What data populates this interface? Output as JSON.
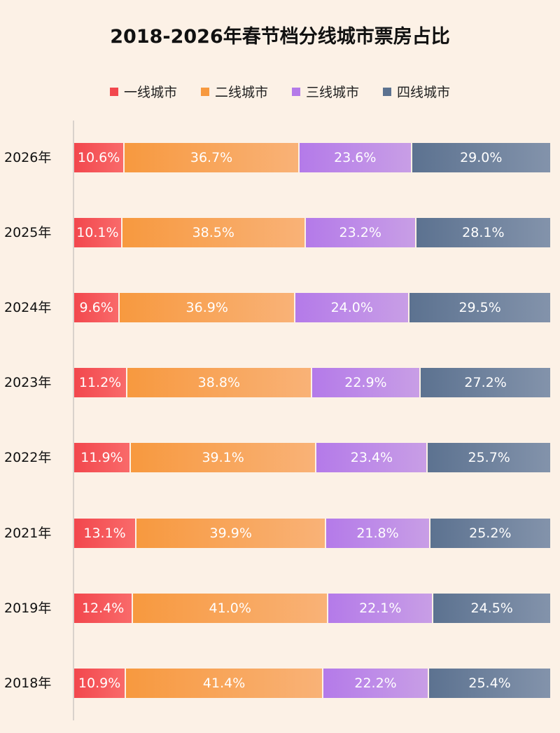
{
  "chart_data": {
    "type": "bar",
    "orientation": "horizontal",
    "stacked": true,
    "title": "2018-2026年春节档分线城市票房占比",
    "categories": [
      "2026年",
      "2025年",
      "2024年",
      "2023年",
      "2022年",
      "2021年",
      "2019年",
      "2018年"
    ],
    "series": [
      {
        "name": "一线城市",
        "color": "#f2474d",
        "color_end": "#f96a6a",
        "values": [
          10.6,
          10.1,
          9.6,
          11.2,
          11.9,
          13.1,
          12.4,
          10.9
        ]
      },
      {
        "name": "二线城市",
        "color": "#f7993f",
        "color_end": "#f9b277",
        "values": [
          36.7,
          38.5,
          36.9,
          38.8,
          39.1,
          39.9,
          41.0,
          41.4
        ]
      },
      {
        "name": "三线城市",
        "color": "#b47ae9",
        "color_end": "#c89ee6",
        "values": [
          23.6,
          23.2,
          24.0,
          22.9,
          23.4,
          21.8,
          22.1,
          22.2
        ]
      },
      {
        "name": "四线城市",
        "color": "#5c7290",
        "color_end": "#8393ab",
        "values": [
          29.0,
          28.1,
          29.5,
          27.2,
          25.7,
          25.2,
          24.5,
          25.4
        ]
      }
    ],
    "unit": "%",
    "legend_position": "top",
    "grid": false
  }
}
